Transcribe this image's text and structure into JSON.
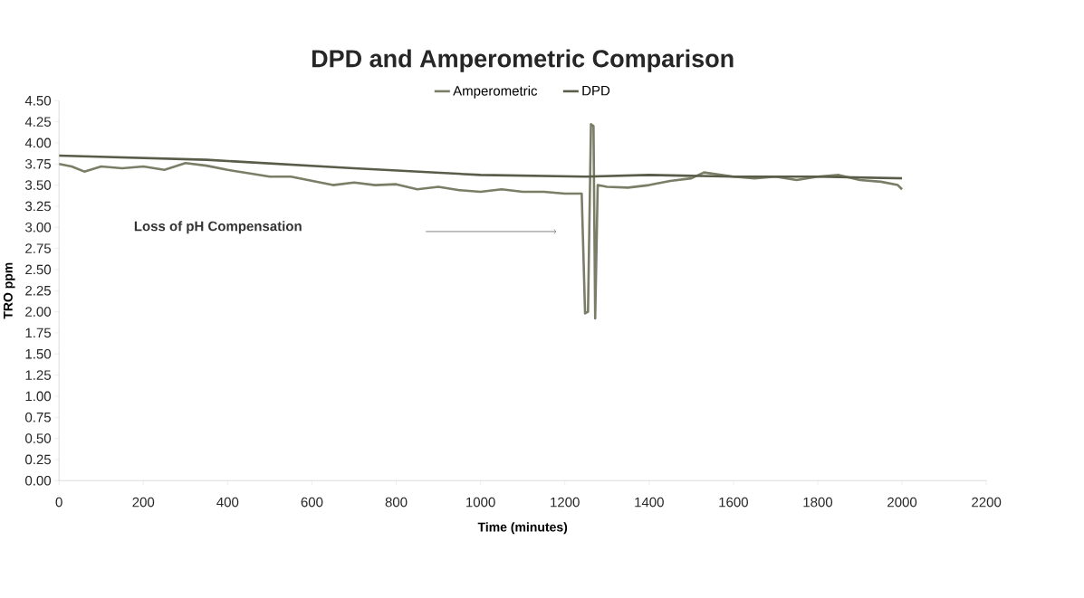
{
  "chart_data": {
    "type": "line",
    "title": "DPD and Amperometric Comparison",
    "xlabel": "Time (minutes)",
    "ylabel": "TRO ppm",
    "xlim": [
      0,
      2200
    ],
    "xticks": [
      0,
      200,
      400,
      600,
      800,
      1000,
      1200,
      1400,
      1600,
      1800,
      2000,
      2200
    ],
    "ylim": [
      0,
      4.5
    ],
    "yticks": [
      {
        "value": 0,
        "label": "0.00"
      },
      {
        "value": 0.25,
        "label": "0.25"
      },
      {
        "value": 0.5,
        "label": "0.50"
      },
      {
        "value": 0.75,
        "label": "0.75"
      },
      {
        "value": 1,
        "label": "1.00"
      },
      {
        "value": 1.25,
        "label": "1.25"
      },
      {
        "value": 1.5,
        "label": "1.50"
      },
      {
        "value": 1.75,
        "label": "1.75"
      },
      {
        "value": 2,
        "label": "2.00"
      },
      {
        "value": 2.25,
        "label": "2.25"
      },
      {
        "value": 2.5,
        "label": "2.50"
      },
      {
        "value": 2.75,
        "label": "2.75"
      },
      {
        "value": 3,
        "label": "3.00"
      },
      {
        "value": 3.25,
        "label": "3.25"
      },
      {
        "value": 3.5,
        "label": "3.50"
      },
      {
        "value": 3.75,
        "label": "3.75"
      },
      {
        "value": 4,
        "label": "4.00"
      },
      {
        "value": 4.25,
        "label": "4.25"
      },
      {
        "value": 4.5,
        "label": "4.50"
      }
    ],
    "grid": false,
    "legend": "top",
    "marker": "none",
    "line_style": "solid",
    "annotations": [
      "Loss of pH Compensation"
    ],
    "series": [
      {
        "name": "Amperometric",
        "color": "#7b7d66",
        "x": [
          0,
          30,
          60,
          100,
          150,
          200,
          250,
          300,
          350,
          400,
          450,
          500,
          550,
          600,
          650,
          700,
          750,
          800,
          850,
          900,
          950,
          1000,
          1050,
          1100,
          1150,
          1200,
          1240,
          1248,
          1255,
          1262,
          1268,
          1272,
          1278,
          1300,
          1350,
          1400,
          1450,
          1500,
          1530,
          1600,
          1650,
          1700,
          1750,
          1800,
          1850,
          1900,
          1950,
          1990,
          2000
        ],
        "values": [
          3.75,
          3.72,
          3.66,
          3.72,
          3.7,
          3.72,
          3.68,
          3.76,
          3.73,
          3.68,
          3.64,
          3.6,
          3.6,
          3.55,
          3.5,
          3.53,
          3.5,
          3.51,
          3.45,
          3.48,
          3.44,
          3.42,
          3.45,
          3.42,
          3.42,
          3.4,
          3.4,
          1.98,
          2.0,
          4.22,
          4.2,
          1.92,
          3.5,
          3.48,
          3.47,
          3.5,
          3.55,
          3.58,
          3.65,
          3.6,
          3.58,
          3.6,
          3.56,
          3.6,
          3.62,
          3.56,
          3.54,
          3.5,
          3.45
        ]
      },
      {
        "name": "DPD",
        "color": "#5a5c4a",
        "x": [
          0,
          350,
          700,
          1000,
          1250,
          1400,
          1600,
          1800,
          2000
        ],
        "values": [
          3.85,
          3.8,
          3.7,
          3.62,
          3.6,
          3.62,
          3.6,
          3.6,
          3.58
        ]
      }
    ]
  }
}
